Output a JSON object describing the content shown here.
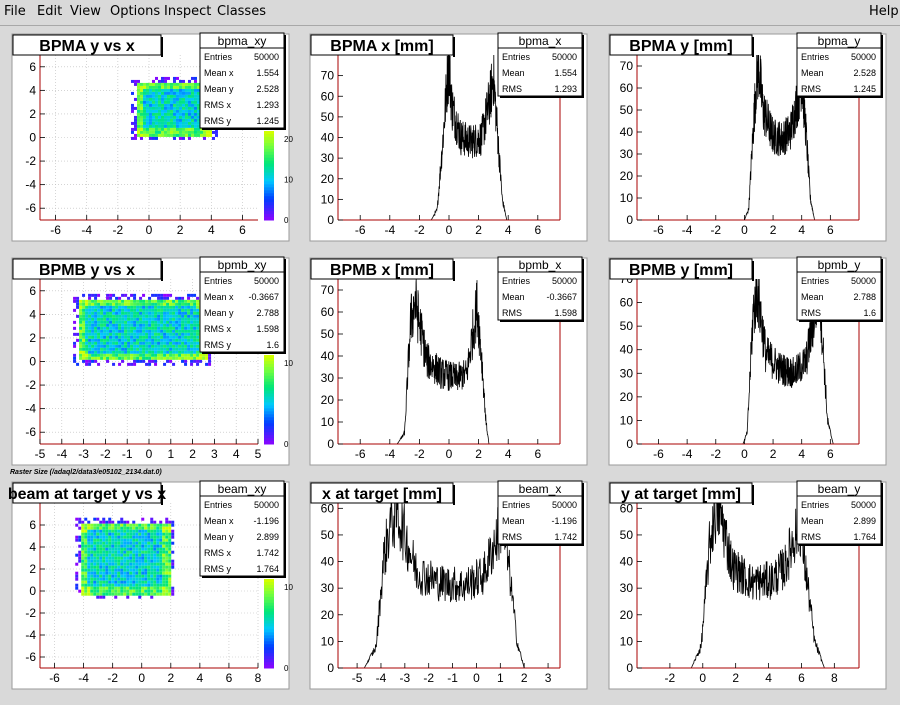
{
  "menu": {
    "file": "File",
    "edit": "Edit",
    "view": "View",
    "options": "Options",
    "inspect": "Inspect",
    "classes": "Classes",
    "help": "Help"
  },
  "canvas_note": "Raster Size (/adaql2/data3/e05102_2134.dat.0)",
  "stat_labels": {
    "entries": "Entries",
    "mean": "Mean",
    "mean_x": "Mean x",
    "mean_y": "Mean y",
    "rms": "RMS",
    "rms_x": "RMS x",
    "rms_y": "RMS y"
  },
  "colors": {
    "pad_bg": "#ffffff",
    "canvas_bg": "#d9d9d9",
    "axis_line": "#aa0000",
    "hist_line": "#000000"
  },
  "chart_data": [
    {
      "id": "bpma_xy",
      "type": "heatmap",
      "title": "BPMA y vs x",
      "xlim": [
        -7,
        7
      ],
      "ylim": [
        -7,
        7
      ],
      "xticks": [
        -6,
        -4,
        -2,
        0,
        2,
        4,
        6
      ],
      "yticks": [
        -6,
        -4,
        -2,
        0,
        2,
        4,
        6
      ],
      "colorbar_ticks": [
        0,
        10,
        20
      ],
      "region": {
        "x": [
          -0.9,
          4.0
        ],
        "y": [
          0.2,
          4.8
        ]
      },
      "stats": {
        "name": "bpma_xy",
        "entries": "50000",
        "mean_x": "1.554",
        "mean_y": "2.528",
        "rms_x": "1.293",
        "rms_y": "1.245"
      }
    },
    {
      "id": "bpma_x",
      "type": "line",
      "title": "BPMA x [mm]",
      "xlim": [
        -7.5,
        7.5
      ],
      "ylim": [
        0,
        80
      ],
      "xticks": [
        -6,
        -4,
        -2,
        0,
        2,
        4,
        6
      ],
      "yticks": [
        0,
        10,
        20,
        30,
        40,
        50,
        60,
        70
      ],
      "x": [
        -1.2,
        -0.8,
        -0.4,
        -0.15,
        0.0,
        0.2,
        0.8,
        1.5,
        2.2,
        2.8,
        3.0,
        3.3,
        3.6,
        3.9
      ],
      "y": [
        0,
        5,
        40,
        65,
        75,
        55,
        40,
        38,
        40,
        60,
        70,
        40,
        10,
        0
      ],
      "stats": {
        "name": "bpma_x",
        "entries": "50000",
        "mean": "1.554",
        "rms": "1.293"
      }
    },
    {
      "id": "bpma_y",
      "type": "line",
      "title": "BPMA y [mm]",
      "xlim": [
        -7.5,
        8
      ],
      "ylim": [
        0,
        75
      ],
      "xticks": [
        -6,
        -4,
        -2,
        0,
        2,
        4,
        6
      ],
      "yticks": [
        0,
        10,
        20,
        30,
        40,
        50,
        60,
        70
      ],
      "x": [
        0.0,
        0.3,
        0.6,
        0.85,
        1.0,
        1.3,
        2.0,
        2.6,
        3.2,
        3.9,
        4.0,
        4.3,
        4.6,
        4.9
      ],
      "y": [
        0,
        5,
        40,
        65,
        70,
        50,
        38,
        37,
        40,
        60,
        65,
        40,
        10,
        0
      ],
      "stats": {
        "name": "bpma_y",
        "entries": "50000",
        "mean": "2.528",
        "rms": "1.245"
      }
    },
    {
      "id": "bpmb_xy",
      "type": "heatmap",
      "title": "BPMB y vs x",
      "xlim": [
        -5,
        5
      ],
      "ylim": [
        -7,
        7
      ],
      "xticks": [
        -5,
        -4,
        -3,
        -2,
        -1,
        0,
        1,
        2,
        3,
        4,
        5
      ],
      "yticks": [
        -6,
        -4,
        -2,
        0,
        2,
        4,
        6
      ],
      "colorbar_ticks": [
        0,
        10
      ],
      "region": {
        "x": [
          -3.3,
          2.6
        ],
        "y": [
          0.2,
          5.4
        ]
      },
      "stats": {
        "name": "bpmb_xy",
        "entries": "50000",
        "mean_x": "-0.3667",
        "mean_y": "2.788",
        "rms_x": "1.598",
        "rms_y": "1.6"
      }
    },
    {
      "id": "bpmb_x",
      "type": "line",
      "title": "BPMB x [mm]",
      "xlim": [
        -7.5,
        7.5
      ],
      "ylim": [
        0,
        75
      ],
      "xticks": [
        -6,
        -4,
        -2,
        0,
        2,
        4,
        6
      ],
      "yticks": [
        0,
        10,
        20,
        30,
        40,
        50,
        60,
        70
      ],
      "x": [
        -3.5,
        -3.0,
        -2.8,
        -2.6,
        -2.3,
        -1.5,
        -0.5,
        0.5,
        1.2,
        1.6,
        1.9,
        2.2,
        2.5,
        2.7
      ],
      "y": [
        0,
        5,
        30,
        55,
        65,
        38,
        32,
        30,
        32,
        50,
        63,
        40,
        10,
        0
      ],
      "stats": {
        "name": "bpmb_x",
        "entries": "50000",
        "mean": "-0.3667",
        "rms": "1.598"
      }
    },
    {
      "id": "bpmb_y",
      "type": "line",
      "title": "BPMB y [mm]",
      "xlim": [
        -7.5,
        8
      ],
      "ylim": [
        0,
        70
      ],
      "xticks": [
        -6,
        -4,
        -2,
        0,
        2,
        4,
        6
      ],
      "yticks": [
        0,
        10,
        20,
        30,
        40,
        50,
        60,
        70
      ],
      "x": [
        -0.1,
        0.2,
        0.4,
        0.6,
        0.9,
        1.5,
        2.5,
        3.5,
        4.3,
        4.9,
        5.2,
        5.5,
        5.8,
        6.2
      ],
      "y": [
        0,
        5,
        30,
        55,
        65,
        38,
        32,
        30,
        35,
        55,
        68,
        40,
        10,
        0
      ],
      "stats": {
        "name": "bpmb_y",
        "entries": "50000",
        "mean": "2.788",
        "rms": "1.6"
      }
    },
    {
      "id": "beam_xy",
      "type": "heatmap",
      "title": "beam at target y vs x",
      "xlim": [
        -7,
        8
      ],
      "ylim": [
        -7,
        8
      ],
      "xticks": [
        -6,
        -4,
        -2,
        0,
        2,
        4,
        6,
        8
      ],
      "yticks": [
        -6,
        -4,
        -2,
        0,
        2,
        4,
        6
      ],
      "colorbar_ticks": [
        0,
        10
      ],
      "region": {
        "x": [
          -4.3,
          1.9
        ],
        "y": [
          -0.3,
          6.3
        ]
      },
      "stats": {
        "name": "beam_xy",
        "entries": "50000",
        "mean_x": "-1.196",
        "mean_y": "2.899",
        "rms_x": "1.742",
        "rms_y": "1.764"
      }
    },
    {
      "id": "beam_x",
      "type": "line",
      "title": "x at target [mm]",
      "xlim": [
        -5.8,
        3.5
      ],
      "ylim": [
        0,
        62
      ],
      "xticks": [
        -5,
        -4,
        -3,
        -2,
        -1,
        0,
        1,
        2,
        3
      ],
      "yticks": [
        0,
        10,
        20,
        30,
        40,
        50,
        60
      ],
      "x": [
        -4.7,
        -4.2,
        -3.9,
        -3.6,
        -3.3,
        -2.5,
        -1.5,
        -0.5,
        0.3,
        0.8,
        1.1,
        1.4,
        1.7,
        2.0
      ],
      "y": [
        0,
        8,
        40,
        55,
        58,
        36,
        32,
        31,
        35,
        48,
        55,
        35,
        10,
        0
      ],
      "stats": {
        "name": "beam_x",
        "entries": "50000",
        "mean": "-1.196",
        "rms": "1.742"
      }
    },
    {
      "id": "beam_y",
      "type": "line",
      "title": "y at target [mm]",
      "xlim": [
        -4,
        9.5
      ],
      "ylim": [
        0,
        62
      ],
      "xticks": [
        -2,
        0,
        2,
        4,
        6,
        8
      ],
      "yticks": [
        0,
        10,
        20,
        30,
        40,
        50,
        60
      ],
      "x": [
        -0.7,
        -0.1,
        0.4,
        0.7,
        1.0,
        1.8,
        3.0,
        4.2,
        5.0,
        5.6,
        5.9,
        6.3,
        6.8,
        7.4
      ],
      "y": [
        0,
        8,
        45,
        58,
        60,
        38,
        32,
        33,
        38,
        50,
        55,
        35,
        10,
        0
      ],
      "stats": {
        "name": "beam_y",
        "entries": "50000",
        "mean": "2.899",
        "rms": "1.764"
      }
    }
  ]
}
